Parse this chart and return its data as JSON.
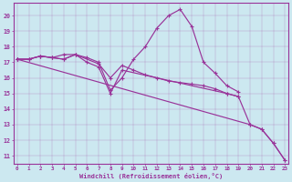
{
  "xlabel": "Windchill (Refroidissement éolien,°C)",
  "bg_color": "#cce8f0",
  "line_color": "#993399",
  "xlim": [
    -0.3,
    23.3
  ],
  "ylim": [
    10.5,
    20.8
  ],
  "xticks": [
    0,
    1,
    2,
    3,
    4,
    5,
    6,
    7,
    8,
    9,
    10,
    11,
    12,
    13,
    14,
    15,
    16,
    17,
    18,
    19,
    20,
    21,
    22,
    23
  ],
  "yticks": [
    11,
    12,
    13,
    14,
    15,
    16,
    17,
    18,
    19,
    20
  ],
  "lines": [
    {
      "x": [
        0,
        1,
        2,
        3,
        4,
        5,
        6,
        7,
        8,
        9,
        10,
        11,
        12,
        13,
        14,
        15,
        16,
        17,
        18,
        19,
        20,
        21,
        22,
        23
      ],
      "y": [
        17.2,
        17.2,
        17.4,
        17.3,
        17.2,
        17.5,
        17.3,
        17.0,
        15.2,
        16.0,
        17.2,
        18.0,
        19.2,
        20.0,
        20.4,
        19.3,
        17.0,
        16.3,
        15.5,
        15.1,
        null,
        null,
        null,
        null
      ]
    },
    {
      "x": [
        0,
        1,
        2,
        3,
        4,
        5,
        7,
        8,
        9,
        10,
        11,
        12,
        13,
        14,
        15,
        16,
        17,
        18,
        19,
        20,
        21,
        22,
        23
      ],
      "y": [
        17.2,
        17.2,
        17.4,
        17.3,
        17.5,
        17.5,
        16.9,
        16.0,
        16.8,
        16.5,
        16.2,
        16.0,
        15.8,
        15.7,
        15.6,
        15.5,
        15.3,
        15.0,
        14.8,
        null,
        null,
        null,
        null
      ]
    },
    {
      "x": [
        0,
        1,
        2,
        3,
        4,
        5,
        6,
        7,
        8,
        9,
        18,
        19,
        20,
        21,
        22,
        23
      ],
      "y": [
        17.2,
        17.2,
        17.4,
        17.3,
        17.2,
        17.5,
        17.0,
        16.7,
        15.0,
        16.5,
        15.0,
        14.8,
        13.0,
        12.7,
        11.8,
        10.7
      ]
    },
    {
      "x": [
        0,
        20,
        21,
        22,
        23
      ],
      "y": [
        17.2,
        13.0,
        12.7,
        11.8,
        10.7
      ]
    }
  ]
}
